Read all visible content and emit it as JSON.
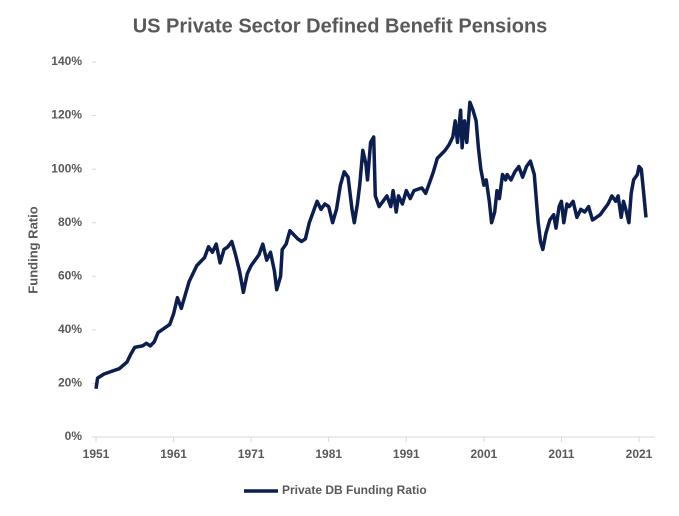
{
  "chart_data": {
    "type": "line",
    "title": "US Private Sector Defined Benefit Pensions",
    "y_label": "Funding Ratio",
    "xlim": [
      1951,
      2023
    ],
    "xticks": [
      1951,
      1961,
      1971,
      1981,
      1991,
      2001,
      2011,
      2021
    ],
    "ylim": [
      0,
      140
    ],
    "yticks": [
      {
        "value": 0,
        "label": "0%"
      },
      {
        "value": 20,
        "label": "20%"
      },
      {
        "value": 40,
        "label": "40%"
      },
      {
        "value": 60,
        "label": "60%"
      },
      {
        "value": 80,
        "label": "80%"
      },
      {
        "value": 100,
        "label": "100%"
      },
      {
        "value": 120,
        "label": "120%"
      },
      {
        "value": 140,
        "label": "140%"
      }
    ],
    "grid": false,
    "legend": "bottom",
    "series": [
      {
        "name": "Private DB Funding Ratio",
        "color": "#0c1e4f",
        "x": [
          1951,
          1951.2,
          1952,
          1953,
          1954,
          1955,
          1955.5,
          1956,
          1957,
          1957.5,
          1958,
          1958.5,
          1959,
          1960,
          1960.5,
          1961,
          1961.5,
          1962,
          1962.5,
          1963,
          1964,
          1965,
          1965.5,
          1966,
          1966.5,
          1967,
          1967.5,
          1968,
          1968.5,
          1969,
          1969.5,
          1970,
          1970.5,
          1971,
          1972,
          1972.5,
          1973,
          1973.5,
          1974,
          1974.3,
          1974.8,
          1975,
          1975.5,
          1976,
          1977,
          1977.5,
          1978,
          1978.5,
          1979,
          1979.5,
          1980,
          1980.5,
          1981,
          1981.5,
          1982,
          1982.5,
          1983,
          1983.5,
          1984,
          1984.3,
          1984.7,
          1985,
          1985.4,
          1985.8,
          1986,
          1986.4,
          1986.8,
          1987,
          1987.5,
          1988,
          1988.5,
          1989,
          1989.3,
          1989.7,
          1990,
          1990.5,
          1991,
          1991.5,
          1992,
          1993,
          1993.5,
          1994,
          1994.5,
          1995,
          1996,
          1996.5,
          1997,
          1997.3,
          1997.6,
          1998,
          1998.2,
          1998.5,
          1998.8,
          1999.2,
          1999.6,
          2000,
          2000.3,
          2000.6,
          2001,
          2001.3,
          2001.7,
          2002,
          2002.4,
          2002.7,
          2003,
          2003.4,
          2003.8,
          2004,
          2004.5,
          2005,
          2005.5,
          2006,
          2006.5,
          2007,
          2007.5,
          2008,
          2008.3,
          2008.6,
          2009,
          2009.5,
          2010,
          2010.3,
          2010.7,
          2011,
          2011.3,
          2011.7,
          2012,
          2012.5,
          2013,
          2013.5,
          2014,
          2014.5,
          2015,
          2015.5,
          2016,
          2016.5,
          2017,
          2017.5,
          2018,
          2018.3,
          2018.7,
          2019,
          2019.3,
          2019.7,
          2020,
          2020.3,
          2020.8,
          2021,
          2021.3,
          2021.6,
          2021.9
        ],
        "values": [
          18,
          22,
          23.5,
          24.5,
          25.5,
          28,
          31,
          33.5,
          34,
          35,
          34,
          35.5,
          39,
          41,
          42,
          46,
          52,
          48,
          53,
          58,
          64,
          67,
          71,
          69,
          72,
          65,
          70,
          71,
          73,
          68,
          62,
          54,
          61,
          64,
          68,
          72,
          66,
          69,
          62,
          55,
          60,
          70,
          72,
          77,
          74,
          73,
          74,
          80,
          84,
          88,
          85,
          87,
          86,
          80,
          85,
          94,
          99,
          97,
          85,
          80,
          87,
          94,
          107,
          102,
          96,
          110,
          112,
          90,
          86,
          88,
          90,
          86,
          92,
          84,
          90,
          87,
          92,
          89,
          92,
          93,
          91,
          95,
          99,
          104,
          107,
          109,
          112,
          118,
          110,
          122,
          108,
          118,
          110,
          125,
          122,
          118,
          108,
          100,
          94,
          96,
          88,
          80,
          84,
          92,
          89,
          98,
          96,
          98,
          96,
          99,
          101,
          97,
          101,
          103,
          98,
          80,
          73,
          70,
          76,
          81,
          83,
          78,
          86,
          88,
          80,
          87,
          86,
          88,
          82,
          85,
          84,
          86,
          81,
          82,
          83,
          85,
          87,
          90,
          88,
          90,
          82,
          88,
          85,
          80,
          91,
          96,
          98,
          101,
          100,
          91,
          82
        ]
      }
    ]
  }
}
